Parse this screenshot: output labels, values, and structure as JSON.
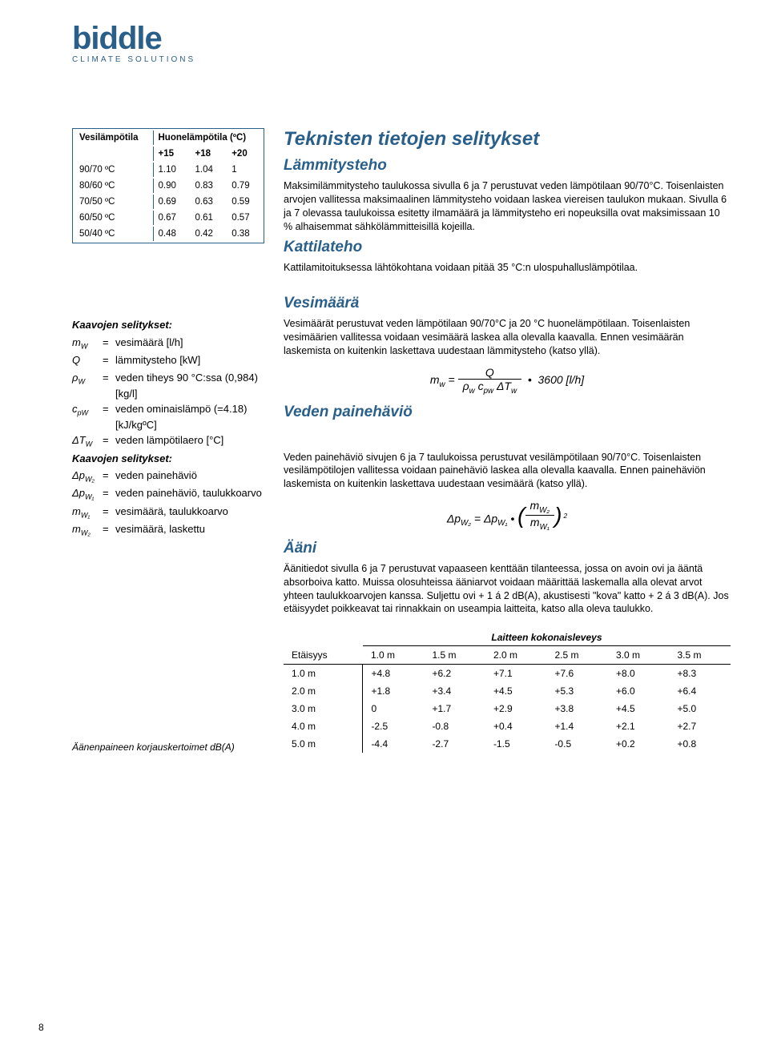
{
  "logo": {
    "text": "biddle",
    "sub": "CLIMATE SOLUTIONS"
  },
  "page": "8",
  "tempTable": {
    "h1": "Vesilämpötila",
    "h2": "Huonelämpötila (ºC)",
    "cols": [
      "+15",
      "+18",
      "+20"
    ],
    "rows": [
      {
        "l": "90/70 ºC",
        "v": [
          "1.10",
          "1.04",
          "1"
        ]
      },
      {
        "l": "80/60 ºC",
        "v": [
          "0.90",
          "0.83",
          "0.79"
        ]
      },
      {
        "l": "70/50 ºC",
        "v": [
          "0.69",
          "0.63",
          "0.59"
        ]
      },
      {
        "l": "60/50 ºC",
        "v": [
          "0.67",
          "0.61",
          "0.57"
        ]
      },
      {
        "l": "50/40 ºC",
        "v": [
          "0.48",
          "0.42",
          "0.38"
        ]
      }
    ]
  },
  "sec": {
    "h1": "Teknisten tietojen selitykset",
    "heat": {
      "t": "Lämmitysteho",
      "p": "Maksimilämmitysteho taulukossa sivulla 6 ja 7 perustuvat veden lämpötilaan 90/70°C. Toisenlaisten arvojen vallitessa maksimaalinen lämmitysteho voidaan laskea viereisen taulukon mukaan. Sivulla 6 ja 7 olevassa taulukoissa esitetty ilmamäärä ja lämmitysteho eri nopeuksilla ovat maksimissaan 10 % alhaisemmat sähkölämmitteisillä kojeilla."
    },
    "boiler": {
      "t": "Kattilateho",
      "p": "Kattilamitoituksessa lähtökohtana voidaan pitää 35 °C:n ulospuhalluslämpötilaa."
    },
    "water": {
      "t": "Vesimäärä",
      "p": "Vesimäärät perustuvat veden lämpötilaan 90/70°C ja 20 °C huonelämpötilaan. Toisenlaisten vesimäärien vallitessa voidaan vesimäärä laskea alla olevalla kaavalla. Ennen vesimäärän laskemista on kuitenkin laskettava uudestaan lämmitysteho (katso yllä)."
    },
    "ploss": {
      "t": "Veden painehäviö",
      "p": "Veden painehäviö sivujen 6 ja 7 taulukoissa perustuvat vesilämpötilaan 90/70°C. Toisenlaisten vesilämpötilojen vallitessa voidaan painehäviö laskea alla olevalla kaavalla. Ennen painehäviön laskemista on kuitenkin laskettava uudestaan vesimäärä (katso yllä)."
    },
    "sound": {
      "t": "Ääni",
      "p": "Äänitiedot sivulla 6 ja 7 perustuvat vapaaseen kenttään tilanteessa, jossa on avoin ovi ja ääntä absorboiva katto. Muissa olosuhteissa ääniarvot voidaan määrittää laskemalla alla olevat arvot yhteen taulukkoarvojen kanssa. Suljettu ovi + 1 á 2 dB(A), akustisesti \"kova\" katto + 2 á 3 dB(A). Jos etäisyydet poikkeavat tai rinnakkain on useampia laitteita, katso alla oleva taulukko."
    }
  },
  "defs1": {
    "t": "Kaavojen selitykset:",
    "r": [
      {
        "s": "m",
        "sub": "W",
        "d": "vesimäärä [l/h]"
      },
      {
        "s": "Q",
        "sub": "",
        "d": "lämmitysteho [kW]"
      },
      {
        "s": "ρ",
        "sub": "W",
        "d": "veden tiheys 90 °C:ssa (0,984) [kg/l]"
      },
      {
        "s": "c",
        "sub": "pW",
        "d": "veden ominaislämpö (=4.18) [kJ/kgºC]"
      },
      {
        "s": "ΔT",
        "sub": "W",
        "d": "veden lämpötilaero [°C]"
      }
    ]
  },
  "defs2": {
    "t": "Kaavojen selitykset:",
    "r": [
      {
        "s": "Δp",
        "sub": "W₂",
        "d": "veden painehäviö"
      },
      {
        "s": "Δp",
        "sub": "W₁",
        "d": "veden painehäviö, taulukkoarvo"
      },
      {
        "s": "m",
        "sub": "W₁",
        "d": "vesimäärä, taulukkoarvo"
      },
      {
        "s": "m",
        "sub": "W₂",
        "d": "vesimäärä, laskettu"
      }
    ]
  },
  "formula1": {
    "lhs": "m",
    "lhsSub": "w",
    "num": "Q",
    "den": "ρw cpw ΔTw",
    "mult": "3600 [l/h]"
  },
  "coeff": {
    "cap": "Laitteen kokonaisleveys",
    "distLabel": "Etäisyys",
    "cols": [
      "1.0 m",
      "1.5 m",
      "2.0 m",
      "2.5 m",
      "3.0 m",
      "3.5 m"
    ],
    "rows": [
      {
        "d": "1.0 m",
        "v": [
          "+4.8",
          "+6.2",
          "+7.1",
          "+7.6",
          "+8.0",
          "+8.3"
        ]
      },
      {
        "d": "2.0 m",
        "v": [
          "+1.8",
          "+3.4",
          "+4.5",
          "+5.3",
          "+6.0",
          "+6.4"
        ]
      },
      {
        "d": "3.0 m",
        "v": [
          "0",
          "+1.7",
          "+2.9",
          "+3.8",
          "+4.5",
          "+5.0"
        ]
      },
      {
        "d": "4.0 m",
        "v": [
          "-2.5",
          "-0.8",
          "+0.4",
          "+1.4",
          "+2.1",
          "+2.7"
        ]
      },
      {
        "d": "5.0 m",
        "v": [
          "-4.4",
          "-2.7",
          "-1.5",
          "-0.5",
          "+0.2",
          "+0.8"
        ]
      }
    ],
    "note": "Äänenpaineen korjauskertoimet dB(A)"
  }
}
